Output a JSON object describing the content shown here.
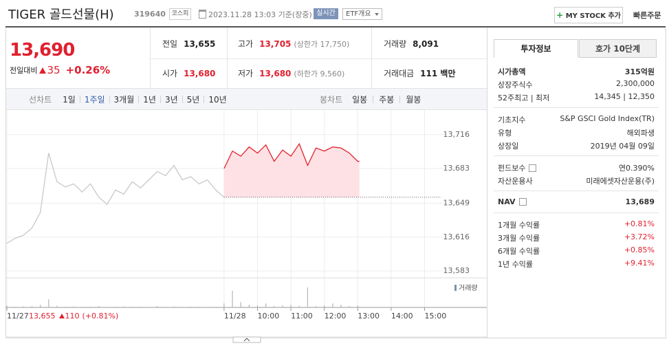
{
  "header": {
    "title": "TIGER 골드선물(H)",
    "code": "319640",
    "market": "코스피",
    "timestamp": "2023.11.28 13:03 기준(장중)",
    "realtime": "실시간",
    "etf_overview": "ETF개요",
    "my_stock": "MY STOCK 추가",
    "quick_order": "빠른주문"
  },
  "quote": {
    "price": "13,690",
    "change_label": "전일대비",
    "change": "35",
    "change_rate": "+0.26%",
    "color": "#e0202f",
    "rows": [
      [
        {
          "label": "전일",
          "value": "13,655"
        },
        {
          "label": "고가",
          "value": "13,705",
          "note": "(상한가 17,750)",
          "color": "#e0202f"
        },
        {
          "label": "거래량",
          "value": "8,091"
        }
      ],
      [
        {
          "label": "시가",
          "value": "13,680",
          "color": "#e0202f"
        },
        {
          "label": "저가",
          "value": "13,680",
          "note": "(하한가 9,560)",
          "color": "#e0202f"
        },
        {
          "label": "거래대금",
          "value": "111 백만"
        }
      ]
    ]
  },
  "tabs": {
    "line_label": "선차트",
    "line": [
      "1일",
      "1주일",
      "3개월",
      "1년",
      "3년",
      "5년",
      "10년"
    ],
    "active": 1,
    "candle_label": "봉차트",
    "candle": [
      "일봉",
      "주봉",
      "월봉"
    ]
  },
  "chart_data": {
    "type": "line",
    "x": [
      0,
      0.25,
      0.5,
      0.75,
      1,
      1.25,
      1.5,
      1.75,
      2,
      2.25,
      2.5,
      2.75,
      3,
      3.25,
      3.5,
      3.75,
      4,
      4.25,
      4.5,
      4.75,
      5,
      5.25,
      5.5,
      5.75,
      6,
      6.25,
      6.5,
      6.75,
      7,
      7.25,
      7.5,
      7.75,
      8,
      8.25,
      8.5,
      8.75,
      9,
      9.25,
      9.5,
      9.75,
      10,
      10.25,
      10.5,
      10.55
    ],
    "series": [
      {
        "color": "#c8c8c8",
        "values": [
          13610,
          13615,
          13618,
          13625,
          13640,
          13698,
          13670,
          13665,
          13668,
          13660,
          13668,
          13655,
          13648,
          13662,
          13658,
          13670,
          13664,
          13672,
          13680,
          13676,
          13686,
          13672,
          13675,
          13668,
          13672,
          13662,
          13655,
          null,
          null,
          null,
          null,
          null,
          null,
          null,
          null,
          null,
          null,
          null,
          null,
          null,
          null,
          null,
          null,
          null
        ]
      },
      {
        "color": "#e3222d",
        "fill_color": "#fde1e4",
        "values": [
          null,
          null,
          null,
          null,
          null,
          null,
          null,
          null,
          null,
          null,
          null,
          null,
          null,
          null,
          null,
          null,
          null,
          null,
          null,
          null,
          null,
          null,
          null,
          null,
          null,
          null,
          13683,
          13700,
          13695,
          13704,
          13698,
          13706,
          13690,
          13701,
          13695,
          13707,
          13686,
          13703,
          13700,
          13704,
          13703,
          13698,
          13690,
          13690
        ]
      },
      {
        "name": "거래량",
        "color": "#b5b5b5",
        "axis": "y2",
        "values": [
          30,
          10,
          15,
          20,
          40,
          120,
          25,
          10,
          15,
          10,
          12,
          20,
          8,
          10,
          15,
          10,
          12,
          8,
          20,
          10,
          15,
          10,
          12,
          10,
          8,
          10,
          60,
          250,
          80,
          40,
          30,
          60,
          20,
          30,
          40,
          25,
          300,
          20,
          30,
          60,
          40,
          20,
          30,
          10
        ]
      }
    ],
    "baseline": 13655,
    "xlim": [
      0,
      13.3
    ],
    "xticks": [
      {
        "value": 0,
        "label": "11/27"
      },
      {
        "value": 6.5,
        "label": "11/28"
      },
      {
        "value": 7.5,
        "label": "10:00"
      },
      {
        "value": 8.5,
        "label": "11:00"
      },
      {
        "value": 9.5,
        "label": "12:00"
      },
      {
        "value": 10.5,
        "label": "13:00"
      },
      {
        "value": 11.5,
        "label": "14:00"
      },
      {
        "value": 12.5,
        "label": "15:00"
      }
    ],
    "ylim": [
      13577,
      13740
    ],
    "yticks": [
      {
        "value": 13716,
        "label": "13,716"
      },
      {
        "value": 13683,
        "label": "13,683"
      },
      {
        "value": 13649,
        "label": "13,649"
      },
      {
        "value": 13616,
        "label": "13,616"
      },
      {
        "value": 13583,
        "label": "13,583"
      }
    ],
    "y2lim": [
      0,
      400
    ],
    "grid": true
  },
  "summary": {
    "close": "13,655",
    "change": "110",
    "rate": "(+0.81%)"
  },
  "info": {
    "tabs": [
      "투자정보",
      "호가 10단계"
    ],
    "groups": [
      [
        {
          "label": "시가총액",
          "value": "315억원",
          "bold": true
        },
        {
          "label": "상장주식수",
          "value": "2,300,000"
        },
        {
          "label": "52주최고 | 최저",
          "value": "14,345 | 12,350"
        }
      ],
      [
        {
          "label": "기초지수",
          "value": "S&P GSCI Gold Index(TR)"
        },
        {
          "label": "유형",
          "value": "해외파생"
        },
        {
          "label": "상장일",
          "value": "2019년 04월 09일"
        }
      ],
      [
        {
          "label": "펀드보수",
          "value": "연0.390%",
          "help": true
        },
        {
          "label": "자산운용사",
          "value": "미래에셋자산운용(주)"
        }
      ],
      [
        {
          "label": "NAV",
          "value": "13,689",
          "help": true,
          "bold": true
        }
      ],
      [
        {
          "label": "1개월 수익률",
          "value": "+0.81%",
          "color": "#e0202f"
        },
        {
          "label": "3개월 수익률",
          "value": "+3.72%",
          "color": "#e0202f"
        },
        {
          "label": "6개월 수익률",
          "value": "+0.85%",
          "color": "#e0202f"
        },
        {
          "label": "1년 수익률",
          "value": "+9.41%",
          "color": "#e0202f"
        }
      ]
    ]
  }
}
